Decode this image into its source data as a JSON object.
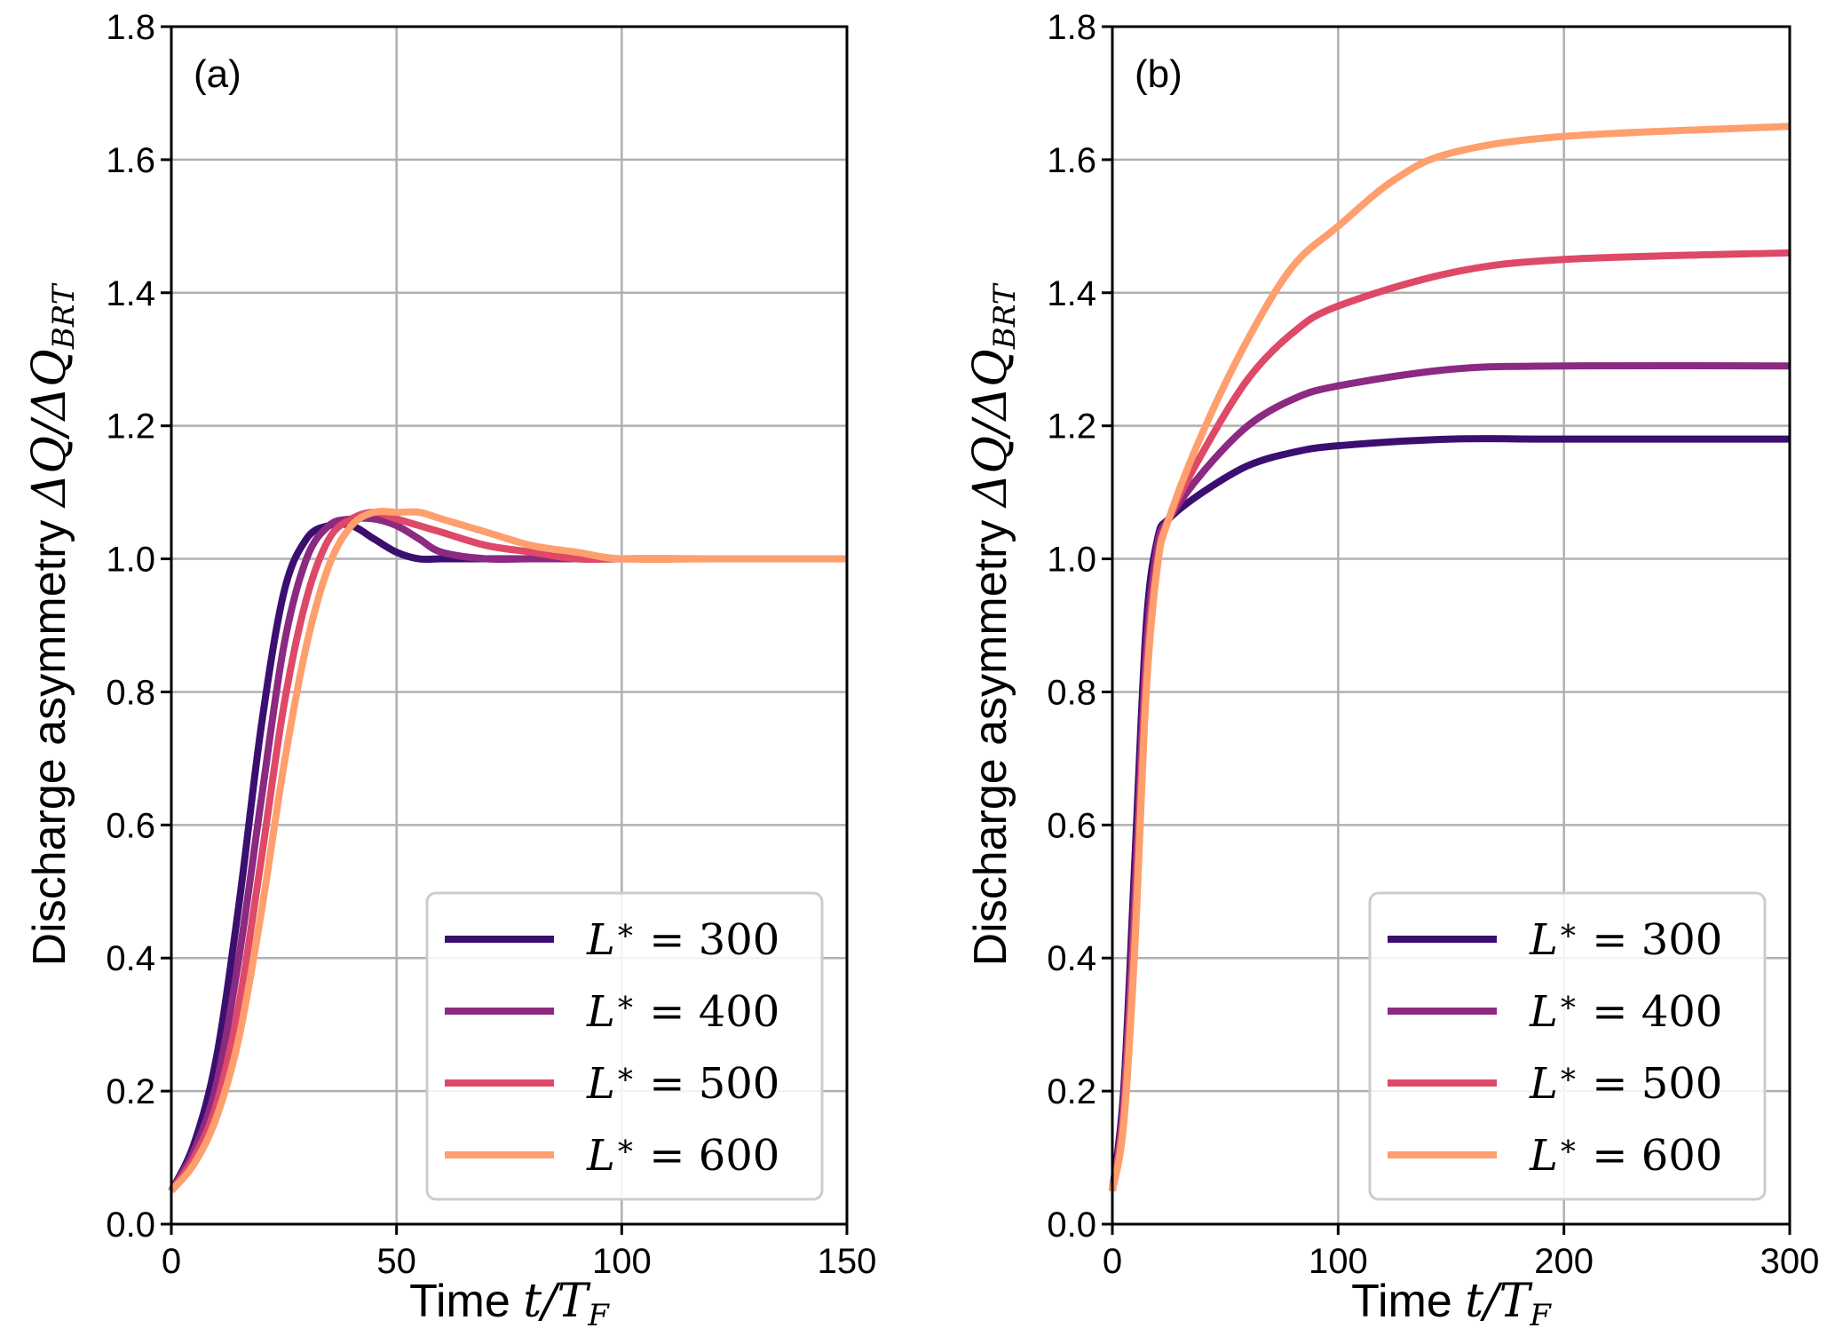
{
  "chart_data": [
    {
      "type": "line",
      "panel_label": "(a)",
      "xlabel_text": "Time ",
      "xlabel_math": "t/T_F",
      "ylabel_text": "Discharge asymmetry ",
      "ylabel_math": "ΔQ/ΔQ_BRT",
      "xlim": [
        0,
        150
      ],
      "ylim": [
        0.0,
        1.8
      ],
      "xticks": [
        0,
        50,
        100,
        150
      ],
      "yticks": [
        0.0,
        0.2,
        0.4,
        0.6,
        0.8,
        1.0,
        1.2,
        1.4,
        1.6,
        1.8
      ],
      "xtick_labels": [
        "0",
        "50",
        "100",
        "150"
      ],
      "ytick_labels": [
        "0.0",
        "0.2",
        "0.4",
        "0.6",
        "0.8",
        "1.0",
        "1.2",
        "1.4",
        "1.6",
        "1.8"
      ],
      "grid": true,
      "legend_position": "lower-right",
      "series": [
        {
          "name": "L* = 300",
          "color": "#3b0f70",
          "x": [
            0,
            5,
            10,
            15,
            20,
            25,
            30,
            35,
            40,
            45,
            50,
            55,
            60,
            70,
            80,
            100,
            120,
            150
          ],
          "y": [
            0.05,
            0.12,
            0.25,
            0.48,
            0.75,
            0.95,
            1.03,
            1.05,
            1.05,
            1.03,
            1.01,
            1.0,
            1.0,
            1.0,
            1.0,
            1.0,
            1.0,
            1.0
          ]
        },
        {
          "name": "L* = 400",
          "color": "#8c2981",
          "x": [
            0,
            5,
            10,
            15,
            20,
            25,
            30,
            35,
            40,
            45,
            50,
            55,
            60,
            70,
            80,
            100,
            120,
            150
          ],
          "y": [
            0.05,
            0.11,
            0.21,
            0.4,
            0.64,
            0.87,
            1.0,
            1.05,
            1.06,
            1.06,
            1.05,
            1.03,
            1.01,
            1.0,
            1.0,
            1.0,
            1.0,
            1.0
          ]
        },
        {
          "name": "L* = 500",
          "color": "#de4968",
          "x": [
            0,
            5,
            10,
            15,
            20,
            25,
            30,
            35,
            40,
            45,
            50,
            55,
            60,
            70,
            80,
            90,
            100,
            120,
            150
          ],
          "y": [
            0.05,
            0.1,
            0.18,
            0.33,
            0.55,
            0.78,
            0.94,
            1.03,
            1.06,
            1.07,
            1.06,
            1.05,
            1.04,
            1.02,
            1.01,
            1.0,
            1.0,
            1.0,
            1.0
          ]
        },
        {
          "name": "L* = 600",
          "color": "#fe9f6d",
          "x": [
            0,
            5,
            10,
            15,
            20,
            25,
            30,
            35,
            40,
            45,
            50,
            55,
            60,
            70,
            80,
            90,
            100,
            120,
            150
          ],
          "y": [
            0.05,
            0.09,
            0.16,
            0.28,
            0.47,
            0.69,
            0.87,
            0.99,
            1.05,
            1.07,
            1.07,
            1.07,
            1.06,
            1.04,
            1.02,
            1.01,
            1.0,
            1.0,
            1.0
          ]
        }
      ],
      "legend": [
        "L* = 300",
        "L* = 400",
        "L* = 500",
        "L* = 600"
      ]
    },
    {
      "type": "line",
      "panel_label": "(b)",
      "xlabel_text": "Time ",
      "xlabel_math": "t/T_F",
      "ylabel_text": "Discharge asymmetry ",
      "ylabel_math": "ΔQ/ΔQ_BRT",
      "xlim": [
        0,
        300
      ],
      "ylim": [
        0.0,
        1.8
      ],
      "xticks": [
        0,
        100,
        200,
        300
      ],
      "yticks": [
        0.0,
        0.2,
        0.4,
        0.6,
        0.8,
        1.0,
        1.2,
        1.4,
        1.6,
        1.8
      ],
      "xtick_labels": [
        "0",
        "100",
        "200",
        "300"
      ],
      "ytick_labels": [
        "0.0",
        "0.2",
        "0.4",
        "0.6",
        "0.8",
        "1.0",
        "1.2",
        "1.4",
        "1.6",
        "1.8"
      ],
      "grid": true,
      "legend_position": "lower-right",
      "series": [
        {
          "name": "L* = 300",
          "color": "#3b0f70",
          "x": [
            0,
            5,
            10,
            15,
            20,
            25,
            40,
            60,
            80,
            100,
            150,
            200,
            300
          ],
          "y": [
            0.05,
            0.2,
            0.55,
            0.9,
            1.03,
            1.06,
            1.1,
            1.14,
            1.16,
            1.17,
            1.18,
            1.18,
            1.18
          ]
        },
        {
          "name": "L* = 400",
          "color": "#8c2981",
          "x": [
            0,
            5,
            10,
            15,
            20,
            25,
            40,
            60,
            80,
            100,
            150,
            200,
            300
          ],
          "y": [
            0.05,
            0.18,
            0.5,
            0.86,
            1.02,
            1.06,
            1.13,
            1.2,
            1.24,
            1.26,
            1.285,
            1.29,
            1.29
          ]
        },
        {
          "name": "L* = 500",
          "color": "#de4968",
          "x": [
            0,
            5,
            10,
            15,
            20,
            25,
            40,
            60,
            80,
            100,
            150,
            200,
            300
          ],
          "y": [
            0.05,
            0.17,
            0.46,
            0.83,
            1.0,
            1.06,
            1.16,
            1.27,
            1.34,
            1.38,
            1.43,
            1.45,
            1.46
          ]
        },
        {
          "name": "L* = 600",
          "color": "#fe9f6d",
          "x": [
            0,
            5,
            10,
            15,
            20,
            25,
            40,
            60,
            80,
            100,
            125,
            150,
            200,
            300
          ],
          "y": [
            0.05,
            0.15,
            0.42,
            0.8,
            0.99,
            1.06,
            1.19,
            1.33,
            1.44,
            1.5,
            1.57,
            1.61,
            1.635,
            1.65
          ]
        }
      ],
      "legend": [
        "L* = 300",
        "L* = 400",
        "L* = 500",
        "L* = 600"
      ]
    }
  ]
}
